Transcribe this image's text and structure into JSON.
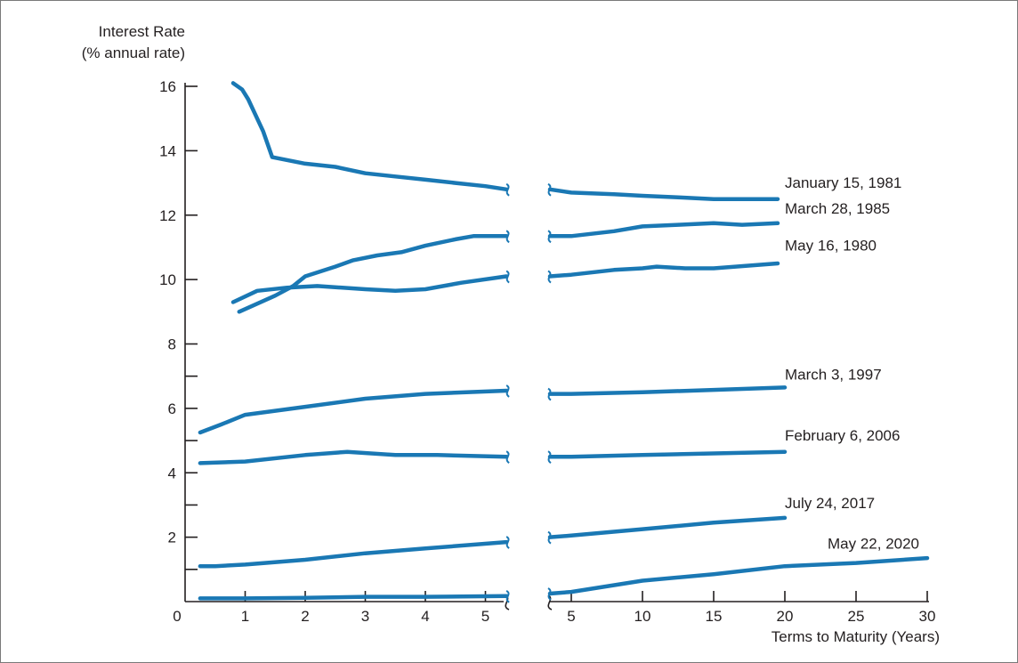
{
  "chart_data": {
    "type": "line",
    "title": "",
    "ylabel_line1": "Interest Rate",
    "ylabel_line2": "(% annual rate)",
    "xlabel": "Terms to Maturity (Years)",
    "ylim": [
      0,
      16
    ],
    "yticks": [
      "16",
      "14",
      "12",
      "10",
      "8",
      "6",
      "4",
      "2"
    ],
    "left_panel": {
      "xlim": [
        0,
        5.4
      ],
      "xticks": [
        "0",
        "1",
        "2",
        "3",
        "4",
        "5"
      ]
    },
    "right_panel": {
      "xlim": [
        2,
        30
      ],
      "xticks": [
        "5",
        "10",
        "15",
        "20",
        "25",
        "30"
      ]
    },
    "grid": false,
    "line_color": "#1a78b4",
    "series": [
      {
        "name": "January 15, 1981",
        "left": [
          [
            0.8,
            16.1
          ],
          [
            0.95,
            15.9
          ],
          [
            1.05,
            15.6
          ],
          [
            1.3,
            14.6
          ],
          [
            1.45,
            13.8
          ],
          [
            2,
            13.6
          ],
          [
            2.5,
            13.5
          ],
          [
            3,
            13.3
          ],
          [
            3.5,
            13.2
          ],
          [
            4,
            13.1
          ],
          [
            4.5,
            13.0
          ],
          [
            5,
            12.9
          ],
          [
            5.35,
            12.8
          ]
        ],
        "right": [
          [
            3.5,
            12.8
          ],
          [
            5,
            12.7
          ],
          [
            8,
            12.65
          ],
          [
            10,
            12.6
          ],
          [
            12.5,
            12.55
          ],
          [
            15,
            12.5
          ],
          [
            17,
            12.5
          ],
          [
            19.5,
            12.5
          ]
        ]
      },
      {
        "name": "March 28, 1985",
        "left": [
          [
            0.9,
            9.0
          ],
          [
            1.5,
            9.5
          ],
          [
            1.8,
            9.8
          ],
          [
            2,
            10.1
          ],
          [
            2.5,
            10.4
          ],
          [
            2.8,
            10.6
          ],
          [
            3.2,
            10.75
          ],
          [
            3.6,
            10.85
          ],
          [
            4,
            11.05
          ],
          [
            4.5,
            11.25
          ],
          [
            4.8,
            11.35
          ],
          [
            5.35,
            11.35
          ]
        ],
        "right": [
          [
            3.5,
            11.35
          ],
          [
            5,
            11.35
          ],
          [
            8,
            11.5
          ],
          [
            10,
            11.65
          ],
          [
            12.5,
            11.7
          ],
          [
            15,
            11.75
          ],
          [
            17,
            11.7
          ],
          [
            19.5,
            11.75
          ]
        ]
      },
      {
        "name": "May 16, 1980",
        "left": [
          [
            0.8,
            9.3
          ],
          [
            1.2,
            9.65
          ],
          [
            1.7,
            9.75
          ],
          [
            2.2,
            9.8
          ],
          [
            3,
            9.7
          ],
          [
            3.5,
            9.65
          ],
          [
            4,
            9.7
          ],
          [
            4.6,
            9.9
          ],
          [
            5.35,
            10.1
          ]
        ],
        "right": [
          [
            3.5,
            10.1
          ],
          [
            5,
            10.15
          ],
          [
            8,
            10.3
          ],
          [
            10,
            10.35
          ],
          [
            11,
            10.4
          ],
          [
            13,
            10.35
          ],
          [
            15,
            10.35
          ],
          [
            19.5,
            10.5
          ]
        ]
      },
      {
        "name": "March 3, 1997",
        "left": [
          [
            0.25,
            5.25
          ],
          [
            0.6,
            5.5
          ],
          [
            1,
            5.8
          ],
          [
            2,
            6.05
          ],
          [
            3,
            6.3
          ],
          [
            4,
            6.45
          ],
          [
            5.35,
            6.55
          ]
        ],
        "right": [
          [
            3.5,
            6.45
          ],
          [
            5,
            6.45
          ],
          [
            10,
            6.5
          ],
          [
            20,
            6.65
          ]
        ]
      },
      {
        "name": "February 6, 2006",
        "left": [
          [
            0.25,
            4.3
          ],
          [
            1,
            4.35
          ],
          [
            2,
            4.55
          ],
          [
            2.7,
            4.65
          ],
          [
            3.5,
            4.55
          ],
          [
            4.2,
            4.55
          ],
          [
            5.35,
            4.5
          ]
        ],
        "right": [
          [
            3.5,
            4.5
          ],
          [
            5,
            4.5
          ],
          [
            10,
            4.55
          ],
          [
            15,
            4.6
          ],
          [
            20,
            4.65
          ]
        ]
      },
      {
        "name": "July 24, 2017",
        "left": [
          [
            0.25,
            1.1
          ],
          [
            0.5,
            1.1
          ],
          [
            1,
            1.15
          ],
          [
            2,
            1.3
          ],
          [
            3,
            1.5
          ],
          [
            4,
            1.65
          ],
          [
            5.35,
            1.85
          ]
        ],
        "right": [
          [
            3.5,
            2.0
          ],
          [
            5,
            2.05
          ],
          [
            10,
            2.25
          ],
          [
            15,
            2.45
          ],
          [
            20,
            2.6
          ]
        ]
      },
      {
        "name": "May 22, 2020",
        "left": [
          [
            0.25,
            0.1
          ],
          [
            1,
            0.1
          ],
          [
            2,
            0.12
          ],
          [
            3,
            0.15
          ],
          [
            4,
            0.15
          ],
          [
            5.35,
            0.17
          ]
        ],
        "right": [
          [
            3.5,
            0.25
          ],
          [
            5,
            0.3
          ],
          [
            10,
            0.65
          ],
          [
            15,
            0.85
          ],
          [
            20,
            1.1
          ],
          [
            25,
            1.2
          ],
          [
            30,
            1.35
          ]
        ]
      }
    ],
    "label_positions": [
      {
        "series": "January 15, 1981",
        "x": 20,
        "y": 12.85
      },
      {
        "series": "March 28, 1985",
        "x": 20,
        "y": 12.05
      },
      {
        "series": "May 16, 1980",
        "x": 20,
        "y": 10.9
      },
      {
        "series": "March 3, 1997",
        "x": 20,
        "y": 6.9
      },
      {
        "series": "February 6, 2006",
        "x": 20,
        "y": 5.0
      },
      {
        "series": "July 24, 2017",
        "x": 20,
        "y": 2.9
      },
      {
        "series": "May 22, 2020",
        "x": 23,
        "y": 1.65
      }
    ]
  }
}
